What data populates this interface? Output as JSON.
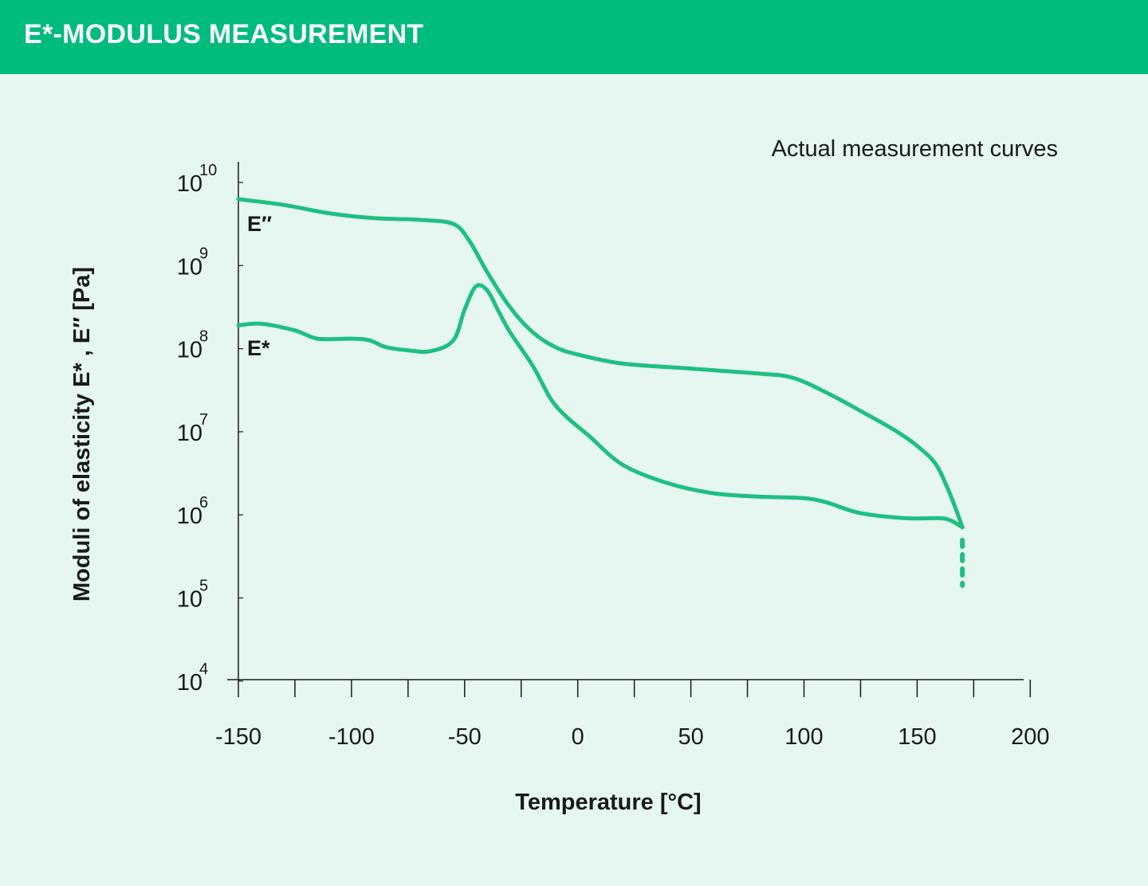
{
  "header": {
    "title": "E*-MODULUS MEASUREMENT"
  },
  "colors": {
    "header_bg": "#00bb7e",
    "page_bg": "#e5f7f0",
    "curve": "#1fbf82",
    "axis": "#1a1a1a"
  },
  "chart_data": {
    "type": "line",
    "title": "",
    "annotation": "Actual measurement curves",
    "xlabel": "Temperature [°C]",
    "ylabel": "Moduli of elasticity E* , E′′ [Pa]",
    "xlim": [
      -150,
      200
    ],
    "ylim": [
      4,
      10
    ],
    "y_scale": "log",
    "x_ticks": [
      -150,
      -100,
      -50,
      0,
      50,
      100,
      150,
      200
    ],
    "x_tick_labels": [
      "-150",
      "-100",
      "-50",
      "0",
      "50",
      "100",
      "150",
      "200"
    ],
    "y_tick_base": "10",
    "y_tick_exponents": [
      "4",
      "5",
      "6",
      "7",
      "8",
      "9",
      "10"
    ],
    "grid": false,
    "legend": "none",
    "series": [
      {
        "name": "E′′",
        "x": [
          -150,
          -130,
          -110,
          -90,
          -70,
          -55,
          -48,
          -40,
          -30,
          -20,
          -10,
          0,
          20,
          50,
          80,
          95,
          110,
          125,
          140,
          150,
          158,
          163,
          167,
          170
        ],
        "y": [
          9.8,
          9.73,
          9.63,
          9.57,
          9.55,
          9.5,
          9.3,
          8.92,
          8.5,
          8.2,
          8.02,
          7.93,
          7.82,
          7.76,
          7.7,
          7.65,
          7.47,
          7.25,
          7.02,
          6.83,
          6.62,
          6.35,
          6.08,
          5.85
        ]
      },
      {
        "name": "E*",
        "x": [
          -150,
          -140,
          -125,
          -115,
          -100,
          -92,
          -85,
          -75,
          -65,
          -55,
          -50,
          -45,
          -40,
          -35,
          -30,
          -20,
          -12,
          -5,
          5,
          20,
          40,
          60,
          80,
          100,
          110,
          125,
          145,
          160,
          165,
          170
        ],
        "y": [
          8.28,
          8.3,
          8.22,
          8.12,
          8.12,
          8.1,
          8.02,
          7.98,
          7.97,
          8.1,
          8.47,
          8.75,
          8.7,
          8.45,
          8.2,
          7.8,
          7.4,
          7.18,
          6.95,
          6.6,
          6.38,
          6.26,
          6.22,
          6.2,
          6.15,
          6.02,
          5.96,
          5.96,
          5.93,
          5.85
        ]
      }
    ],
    "curve_labels": [
      {
        "series": "E′′",
        "text": "E′′"
      },
      {
        "series": "E*",
        "text": "E*"
      }
    ],
    "dashed_extension": {
      "x": 170,
      "from_y": 5.85,
      "to_y": 5.15
    }
  }
}
